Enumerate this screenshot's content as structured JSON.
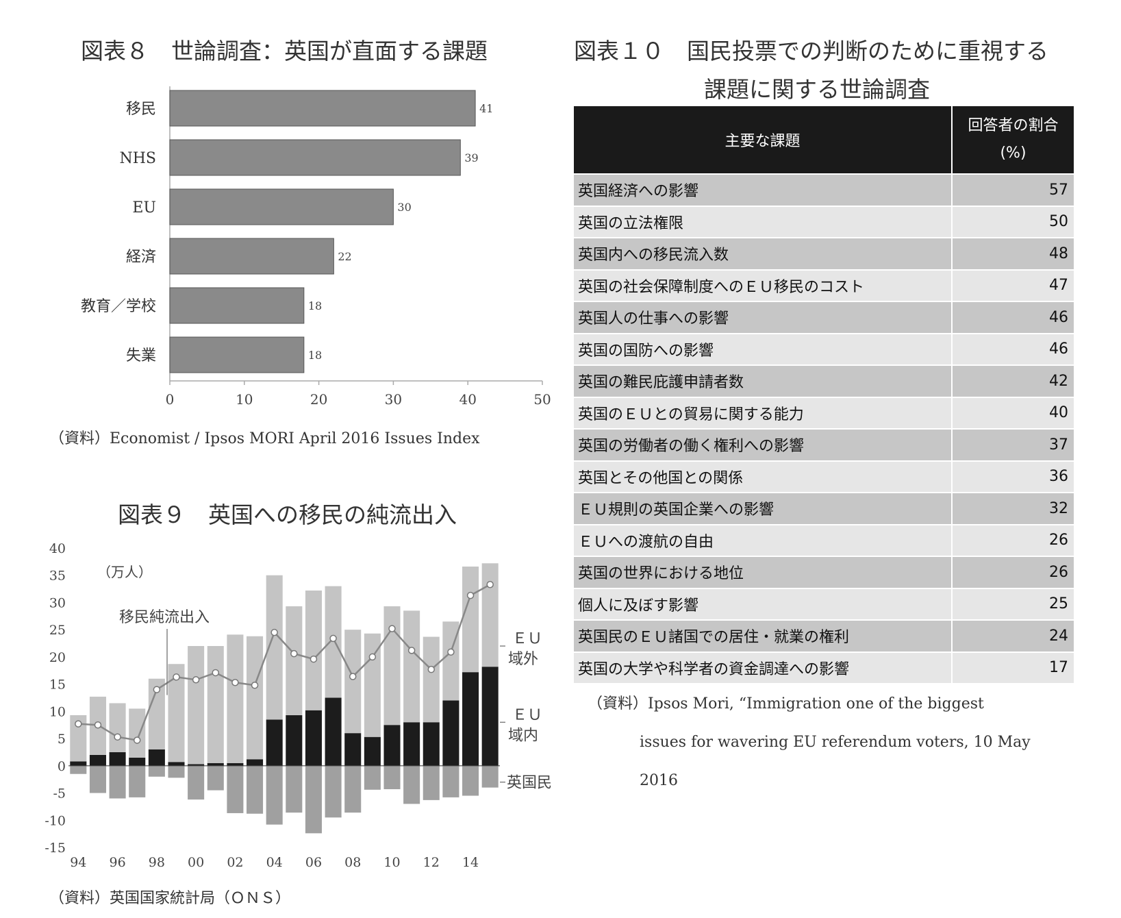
{
  "chart_data": [
    {
      "type": "bar",
      "orientation": "horizontal",
      "title": "図表８　世論調査：英国が直面する課題",
      "categories": [
        "移民",
        "NHS",
        "EU",
        "経済",
        "教育／学校",
        "失業"
      ],
      "values": [
        41,
        39,
        30,
        22,
        18,
        18
      ],
      "xlim": [
        0,
        50
      ],
      "xticks": [
        0,
        10,
        20,
        30,
        40,
        50
      ],
      "source": "（資料）Economist / Ipsos MORI April 2016 Issues Index",
      "bar_color": "#8a8a8a"
    },
    {
      "type": "bar",
      "stacked": true,
      "title": "図表９　英国への移民の純流出入",
      "unit_label": "（万人）",
      "ylim": [
        -15,
        40
      ],
      "yticks": [
        40,
        35,
        30,
        25,
        20,
        15,
        10,
        5,
        0,
        -5,
        -10,
        -15
      ],
      "x": [
        1994,
        1995,
        1996,
        1997,
        1998,
        1999,
        2000,
        2001,
        2002,
        2003,
        2004,
        2005,
        2006,
        2007,
        2008,
        2009,
        2010,
        2011,
        2012,
        2013,
        2014,
        2015
      ],
      "xtick_labels": [
        "94",
        "96",
        "98",
        "00",
        "02",
        "04",
        "06",
        "08",
        "10",
        "12",
        "14"
      ],
      "series": [
        {
          "name": "英国民",
          "values": [
            -1.5,
            -5,
            -6,
            -5.8,
            -2,
            -2.2,
            -6.2,
            -4.5,
            -8.7,
            -8.8,
            -10.8,
            -8.6,
            -12.4,
            -9.5,
            -8.6,
            -4.4,
            -4.3,
            -7,
            -6.3,
            -5.8,
            -5.5,
            -4
          ],
          "color": "#a0a0a0"
        },
        {
          "name": "ＥＵ域内",
          "values": [
            0.8,
            2,
            2.5,
            1.5,
            3,
            0.7,
            0.3,
            0.5,
            0.5,
            1.2,
            8.5,
            9.3,
            10.2,
            12.5,
            6,
            5.3,
            7.5,
            8,
            8,
            12,
            17.2,
            18.2
          ],
          "color": "#1c1c1c"
        },
        {
          "name": "ＥＵ域外",
          "values": [
            8.5,
            10.7,
            9,
            9,
            13,
            18,
            21.7,
            21.5,
            23.6,
            22.6,
            26.5,
            20,
            22,
            20.5,
            19,
            19,
            21.8,
            20.5,
            15.7,
            14.5,
            19.4,
            19
          ],
          "color": "#c4c4c4"
        },
        {
          "name": "移民純流出入",
          "type": "line",
          "values": [
            7.7,
            7.5,
            5.3,
            4.7,
            14,
            16.3,
            15.8,
            17.1,
            15.3,
            14.8,
            24.5,
            20.6,
            19.6,
            23.4,
            16.4,
            20,
            25.2,
            21.2,
            17.7,
            20.9,
            31.3,
            33.3
          ],
          "color": "#888888"
        }
      ],
      "source": "（資料）英国国家統計局（ＯＮＳ）"
    },
    {
      "type": "table",
      "title_line1": "図表１０　国民投票での判断のために重視する",
      "title_line2": "課題に関する世論調査",
      "columns": [
        "主要な課題",
        "回答者の割合",
        "(%)"
      ],
      "rows": [
        {
          "label": "英国経済への影響",
          "value": "57"
        },
        {
          "label": "英国の立法権限",
          "value": "50"
        },
        {
          "label": "英国内への移民流入数",
          "value": "48"
        },
        {
          "label": "英国の社会保障制度へのＥＵ移民のコスト",
          "value": "47"
        },
        {
          "label": "英国人の仕事への影響",
          "value": "46"
        },
        {
          "label": "英国の国防への影響",
          "value": "46"
        },
        {
          "label": "英国の難民庇護申請者数",
          "value": "42"
        },
        {
          "label": "英国のＥＵとの貿易に関する能力",
          "value": "40"
        },
        {
          "label": "英国の労働者の働く権利への影響",
          "value": "37"
        },
        {
          "label": "英国とその他国との関係",
          "value": "36"
        },
        {
          "label": "ＥＵ規則の英国企業への影響",
          "value": "32"
        },
        {
          "label": "ＥＵへの渡航の自由",
          "value": "26"
        },
        {
          "label": "英国の世界における地位",
          "value": "26"
        },
        {
          "label": "個人に及ぼす影響",
          "value": "25"
        },
        {
          "label": "英国民のＥＵ諸国での居住・就業の権利",
          "value": "24"
        },
        {
          "label": "英国の大学や科学者の資金調達への影響",
          "value": "17"
        }
      ],
      "source_line1": "（資料）Ipsos Mori, “Immigration one of the biggest",
      "source_line2": "issues for wavering EU referendum voters, 10 May",
      "source_line3": "2016"
    }
  ]
}
